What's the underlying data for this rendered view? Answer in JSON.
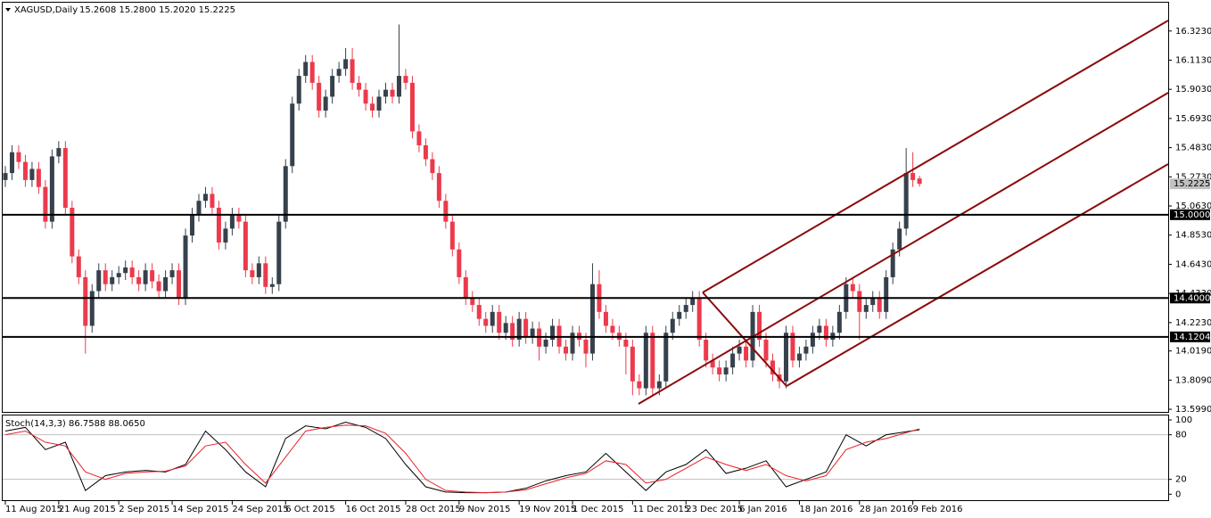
{
  "chart_data": [
    {
      "type": "candlestick",
      "title": "XAGUSD,Daily",
      "ohlc_label": "15.2608 15.2800 15.2020 15.2225",
      "colors": {
        "up": "#36414b",
        "down": "#ec3a4c",
        "levels": "#000000",
        "pitchfork": "#8b0a0a"
      },
      "ylim": [
        13.58,
        16.527
      ],
      "yticks": [
        {
          "value": 16.323,
          "label": "16.3230"
        },
        {
          "value": 16.113,
          "label": "16.1130"
        },
        {
          "value": 15.903,
          "label": "15.9030"
        },
        {
          "value": 15.693,
          "label": "15.6930"
        },
        {
          "value": 15.483,
          "label": "15.4830"
        },
        {
          "value": 15.273,
          "label": "15.2730"
        },
        {
          "value": 15.063,
          "label": "15.0630"
        },
        {
          "value": 14.853,
          "label": "14.8530"
        },
        {
          "value": 14.643,
          "label": "14.6430"
        },
        {
          "value": 14.433,
          "label": "14.4330"
        },
        {
          "value": 14.223,
          "label": "14.2230"
        },
        {
          "value": 14.019,
          "label": "14.0190"
        },
        {
          "value": 13.809,
          "label": "13.8090"
        },
        {
          "value": 13.599,
          "label": "13.5990"
        }
      ],
      "levels": [
        {
          "value": 15.0,
          "label": "15.0000"
        },
        {
          "value": 14.4,
          "label": "14.4000"
        },
        {
          "value": 14.1204,
          "label": "14.1204"
        }
      ],
      "current_price": {
        "value": 15.2225,
        "label": "15.2225"
      },
      "xlim": [
        -0.4,
        174.27
      ],
      "xticks": [
        {
          "value": 0,
          "label": "11 Aug 2015"
        },
        {
          "value": 8,
          "label": "21 Aug 2015"
        },
        {
          "value": 17,
          "label": "2 Sep 2015"
        },
        {
          "value": 25,
          "label": "14 Sep 2015"
        },
        {
          "value": 34,
          "label": "24 Sep 2015"
        },
        {
          "value": 42,
          "label": "6 Oct 2015"
        },
        {
          "value": 51,
          "label": "16 Oct 2015"
        },
        {
          "value": 60,
          "label": "28 Oct 2015"
        },
        {
          "value": 68,
          "label": "9 Nov 2015"
        },
        {
          "value": 77,
          "label": "19 Nov 2015"
        },
        {
          "value": 85,
          "label": "1 Dec 2015"
        },
        {
          "value": 94,
          "label": "11 Dec 2015"
        },
        {
          "value": 102,
          "label": "23 Dec 2015"
        },
        {
          "value": 110,
          "label": "6 Jan 2016"
        },
        {
          "value": 119,
          "label": "18 Jan 2016"
        },
        {
          "value": 128,
          "label": "28 Jan 2016"
        },
        {
          "value": 136,
          "label": "9 Feb 2016"
        }
      ],
      "ohlc": [
        [
          15.25,
          15.35,
          15.2,
          15.3
        ],
        [
          15.3,
          15.5,
          15.25,
          15.45
        ],
        [
          15.45,
          15.5,
          15.33,
          15.38
        ],
        [
          15.38,
          15.43,
          15.2,
          15.25
        ],
        [
          15.25,
          15.38,
          15.2,
          15.33
        ],
        [
          15.33,
          15.38,
          15.15,
          15.2
        ],
        [
          15.2,
          15.25,
          14.9,
          14.95
        ],
        [
          14.95,
          15.47,
          14.9,
          15.42
        ],
        [
          15.42,
          15.53,
          15.37,
          15.48
        ],
        [
          15.48,
          15.53,
          15.0,
          15.05
        ],
        [
          15.05,
          15.1,
          14.65,
          14.7
        ],
        [
          14.7,
          14.75,
          14.5,
          14.55
        ],
        [
          14.55,
          14.6,
          14.0,
          14.2
        ],
        [
          14.2,
          14.5,
          14.15,
          14.45
        ],
        [
          14.45,
          14.65,
          14.4,
          14.6
        ],
        [
          14.6,
          14.65,
          14.45,
          14.5
        ],
        [
          14.5,
          14.6,
          14.45,
          14.55
        ],
        [
          14.55,
          14.63,
          14.5,
          14.58
        ],
        [
          14.58,
          14.67,
          14.53,
          14.62
        ],
        [
          14.62,
          14.67,
          14.5,
          14.55
        ],
        [
          14.55,
          14.6,
          14.45,
          14.5
        ],
        [
          14.5,
          14.65,
          14.45,
          14.6
        ],
        [
          14.6,
          14.65,
          14.47,
          14.52
        ],
        [
          14.52,
          14.57,
          14.4,
          14.45
        ],
        [
          14.45,
          14.6,
          14.4,
          14.55
        ],
        [
          14.55,
          14.65,
          14.5,
          14.6
        ],
        [
          14.6,
          14.65,
          14.35,
          14.4
        ],
        [
          14.4,
          14.9,
          14.35,
          14.85
        ],
        [
          14.85,
          15.05,
          14.8,
          15.0
        ],
        [
          15.0,
          15.15,
          14.95,
          15.1
        ],
        [
          15.1,
          15.2,
          15.05,
          15.15
        ],
        [
          15.15,
          15.2,
          15.0,
          15.05
        ],
        [
          15.05,
          15.1,
          14.75,
          14.8
        ],
        [
          14.8,
          14.95,
          14.75,
          14.9
        ],
        [
          14.9,
          15.05,
          14.85,
          15.0
        ],
        [
          15.0,
          15.05,
          14.9,
          14.95
        ],
        [
          14.95,
          15.0,
          14.55,
          14.6
        ],
        [
          14.6,
          14.65,
          14.5,
          14.55
        ],
        [
          14.55,
          14.7,
          14.5,
          14.65
        ],
        [
          14.65,
          14.7,
          14.43,
          14.48
        ],
        [
          14.48,
          14.55,
          14.43,
          14.5
        ],
        [
          14.5,
          15.0,
          14.45,
          14.95
        ],
        [
          14.95,
          15.4,
          14.9,
          15.35
        ],
        [
          15.35,
          15.85,
          15.3,
          15.8
        ],
        [
          15.8,
          16.05,
          15.75,
          16.0
        ],
        [
          16.0,
          16.15,
          15.95,
          16.1
        ],
        [
          16.1,
          16.15,
          15.9,
          15.95
        ],
        [
          15.95,
          16.0,
          15.7,
          15.75
        ],
        [
          15.75,
          15.9,
          15.7,
          15.85
        ],
        [
          15.85,
          16.05,
          15.8,
          16.0
        ],
        [
          16.0,
          16.1,
          15.95,
          16.05
        ],
        [
          16.05,
          16.2,
          16.0,
          16.12
        ],
        [
          16.12,
          16.2,
          15.9,
          15.95
        ],
        [
          15.95,
          16.0,
          15.85,
          15.9
        ],
        [
          15.9,
          15.95,
          15.75,
          15.8
        ],
        [
          15.8,
          15.85,
          15.7,
          15.75
        ],
        [
          15.75,
          15.9,
          15.7,
          15.85
        ],
        [
          15.85,
          15.95,
          15.8,
          15.9
        ],
        [
          15.9,
          15.95,
          15.8,
          15.85
        ],
        [
          15.85,
          16.37,
          15.8,
          16.0
        ],
        [
          16.0,
          16.05,
          15.9,
          15.95
        ],
        [
          15.95,
          16.0,
          15.55,
          15.6
        ],
        [
          15.6,
          15.65,
          15.45,
          15.5
        ],
        [
          15.5,
          15.55,
          15.35,
          15.4
        ],
        [
          15.4,
          15.45,
          15.25,
          15.3
        ],
        [
          15.3,
          15.35,
          15.05,
          15.1
        ],
        [
          15.1,
          15.15,
          14.9,
          14.95
        ],
        [
          14.95,
          15.0,
          14.7,
          14.75
        ],
        [
          14.75,
          14.8,
          14.5,
          14.55
        ],
        [
          14.55,
          14.6,
          14.35,
          14.4
        ],
        [
          14.4,
          14.45,
          14.3,
          14.35
        ],
        [
          14.35,
          14.4,
          14.2,
          14.25
        ],
        [
          14.25,
          14.3,
          14.15,
          14.2
        ],
        [
          14.2,
          14.35,
          14.15,
          14.3
        ],
        [
          14.3,
          14.35,
          14.1,
          14.15
        ],
        [
          14.15,
          14.27,
          14.1,
          14.22
        ],
        [
          14.22,
          14.27,
          14.05,
          14.1
        ],
        [
          14.1,
          14.3,
          14.05,
          14.25
        ],
        [
          14.25,
          14.3,
          14.07,
          14.12
        ],
        [
          14.12,
          14.23,
          14.07,
          14.18
        ],
        [
          14.18,
          14.23,
          13.95,
          14.05
        ],
        [
          14.05,
          14.15,
          14.0,
          14.1
        ],
        [
          14.1,
          14.25,
          14.05,
          14.2
        ],
        [
          14.2,
          14.25,
          14.0,
          14.05
        ],
        [
          14.05,
          14.1,
          13.95,
          14.0
        ],
        [
          14.0,
          14.2,
          13.95,
          14.15
        ],
        [
          14.15,
          14.2,
          14.05,
          14.1
        ],
        [
          14.1,
          14.15,
          13.9,
          14.0
        ],
        [
          14.0,
          14.65,
          13.95,
          14.5
        ],
        [
          14.5,
          14.6,
          14.25,
          14.3
        ],
        [
          14.3,
          14.35,
          14.15,
          14.2
        ],
        [
          14.2,
          14.25,
          14.1,
          14.15
        ],
        [
          14.15,
          14.2,
          14.05,
          14.1
        ],
        [
          14.1,
          14.15,
          13.85,
          14.05
        ],
        [
          14.05,
          14.1,
          13.7,
          13.8
        ],
        [
          13.8,
          13.85,
          13.7,
          13.75
        ],
        [
          13.75,
          14.2,
          13.7,
          14.15
        ],
        [
          14.15,
          14.2,
          13.7,
          13.75
        ],
        [
          13.75,
          13.85,
          13.7,
          13.8
        ],
        [
          13.8,
          14.2,
          13.75,
          14.15
        ],
        [
          14.15,
          14.3,
          14.1,
          14.25
        ],
        [
          14.25,
          14.35,
          14.2,
          14.3
        ],
        [
          14.3,
          14.4,
          14.25,
          14.35
        ],
        [
          14.35,
          14.45,
          14.3,
          14.4
        ],
        [
          14.4,
          14.45,
          14.05,
          14.1
        ],
        [
          14.1,
          14.15,
          13.9,
          13.95
        ],
        [
          13.95,
          14.0,
          13.85,
          13.9
        ],
        [
          13.9,
          13.95,
          13.8,
          13.85
        ],
        [
          13.85,
          13.95,
          13.8,
          13.9
        ],
        [
          13.9,
          14.05,
          13.85,
          14.0
        ],
        [
          14.0,
          14.1,
          13.95,
          14.05
        ],
        [
          14.05,
          14.1,
          13.9,
          13.95
        ],
        [
          13.95,
          14.35,
          13.9,
          14.3
        ],
        [
          14.3,
          14.35,
          14.05,
          14.1
        ],
        [
          14.1,
          14.15,
          13.9,
          13.95
        ],
        [
          13.95,
          14.0,
          13.8,
          13.85
        ],
        [
          13.85,
          13.9,
          13.75,
          13.8
        ],
        [
          13.8,
          14.2,
          13.75,
          14.15
        ],
        [
          14.15,
          14.2,
          13.9,
          13.95
        ],
        [
          13.95,
          14.05,
          13.9,
          14.0
        ],
        [
          14.0,
          14.1,
          13.95,
          14.05
        ],
        [
          14.05,
          14.2,
          14.0,
          14.15
        ],
        [
          14.15,
          14.25,
          14.1,
          14.2
        ],
        [
          14.2,
          14.25,
          14.05,
          14.1
        ],
        [
          14.1,
          14.2,
          14.05,
          14.15
        ],
        [
          14.15,
          14.35,
          14.1,
          14.3
        ],
        [
          14.3,
          14.55,
          14.25,
          14.5
        ],
        [
          14.5,
          14.55,
          14.4,
          14.45
        ],
        [
          14.45,
          14.5,
          14.1,
          14.3
        ],
        [
          14.3,
          14.4,
          14.25,
          14.35
        ],
        [
          14.35,
          14.45,
          14.3,
          14.4
        ],
        [
          14.4,
          14.45,
          14.25,
          14.3
        ],
        [
          14.3,
          14.6,
          14.25,
          14.55
        ],
        [
          14.55,
          14.8,
          14.5,
          14.75
        ],
        [
          14.75,
          14.95,
          14.7,
          14.9
        ],
        [
          14.9,
          15.48,
          14.85,
          15.3
        ],
        [
          15.3,
          15.45,
          15.2,
          15.25
        ],
        [
          15.2608,
          15.28,
          15.202,
          15.2225
        ]
      ]
    },
    {
      "type": "line",
      "title": "Stoch(14,3,3) 86.7588 88.0650",
      "xlim": [
        -0.4,
        174.27
      ],
      "ylim": [
        -8,
        106
      ],
      "yticks": [
        100,
        80,
        20,
        0
      ],
      "x": [
        0,
        3,
        6,
        9,
        12,
        15,
        18,
        21,
        24,
        27,
        30,
        33,
        36,
        39,
        42,
        45,
        48,
        51,
        54,
        57,
        60,
        63,
        66,
        69,
        72,
        75,
        78,
        81,
        84,
        87,
        90,
        93,
        96,
        99,
        102,
        105,
        108,
        111,
        114,
        117,
        120,
        123,
        126,
        129,
        132,
        137
      ],
      "series": [
        {
          "color": "#000000",
          "values": [
            85,
            90,
            60,
            70,
            5,
            25,
            30,
            32,
            30,
            40,
            85,
            60,
            30,
            10,
            75,
            92,
            88,
            97,
            90,
            75,
            40,
            10,
            3,
            2,
            2,
            3,
            8,
            18,
            25,
            30,
            55,
            30,
            5,
            30,
            40,
            60,
            28,
            35,
            45,
            10,
            20,
            30,
            80,
            65,
            80,
            86.76
          ]
        },
        {
          "color": "#e8202a",
          "values": [
            80,
            85,
            70,
            65,
            30,
            20,
            28,
            30,
            31,
            38,
            65,
            70,
            40,
            15,
            50,
            85,
            90,
            93,
            92,
            82,
            55,
            20,
            5,
            3,
            2,
            3,
            6,
            14,
            22,
            28,
            45,
            40,
            15,
            20,
            35,
            50,
            40,
            32,
            40,
            25,
            18,
            25,
            60,
            70,
            75,
            88.07
          ]
        }
      ]
    }
  ]
}
